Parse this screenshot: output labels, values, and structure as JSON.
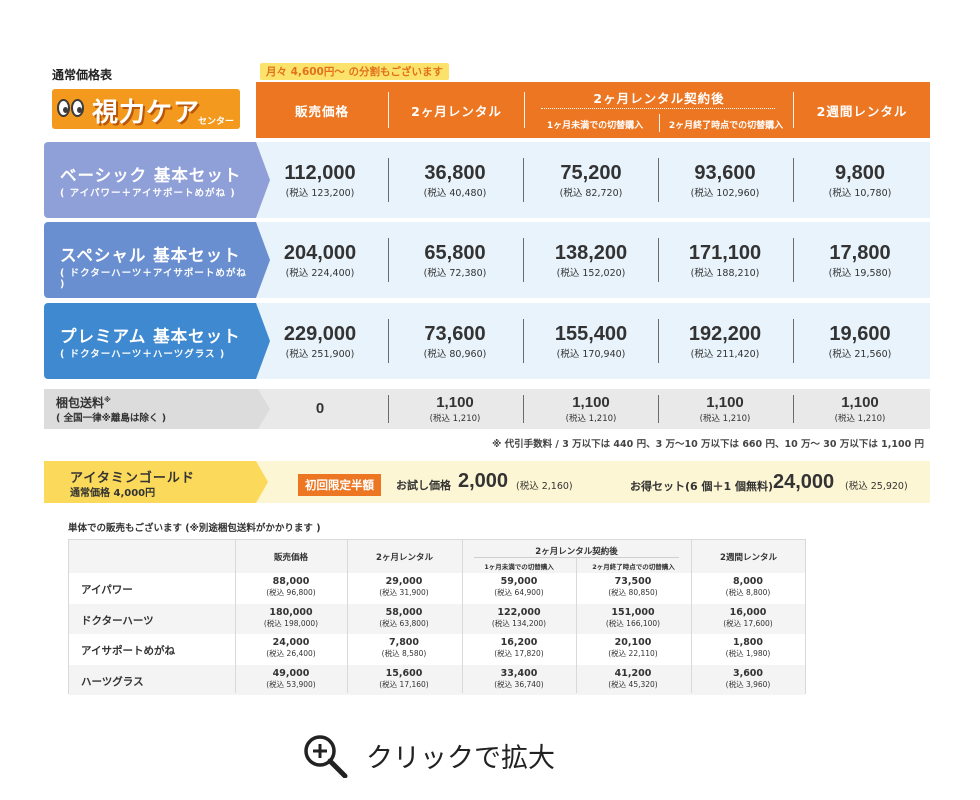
{
  "title_small": "通常価格表",
  "installment_note": "月々 4,600円〜 の分割もございます",
  "logo": {
    "text": "視力ケア",
    "sub": "センター"
  },
  "header": {
    "col1": "販売価格",
    "col2": "2ヶ月レンタル",
    "col3": "2ヶ月レンタル契約後",
    "col3a": "1ヶ月未満での切替購入",
    "col3b": "2ヶ月終了時点での切替購入",
    "col4": "2週間レンタル"
  },
  "sets": [
    {
      "name": "ベーシック 基本セット",
      "sub": "( アイパワー＋アイサポートめがね )",
      "color": "#8f9fd8",
      "values": [
        {
          "price": "112,000",
          "tax": "(税込 123,200)"
        },
        {
          "price": "36,800",
          "tax": "(税込 40,480)"
        },
        {
          "price": "75,200",
          "tax": "(税込 82,720)"
        },
        {
          "price": "93,600",
          "tax": "(税込 102,960)"
        },
        {
          "price": "9,800",
          "tax": "(税込 10,780)"
        }
      ]
    },
    {
      "name": "スペシャル 基本セット",
      "sub": "( ドクターハーツ＋アイサポートめがね )",
      "color": "#6a8fd1",
      "values": [
        {
          "price": "204,000",
          "tax": "(税込 224,400)"
        },
        {
          "price": "65,800",
          "tax": "(税込 72,380)"
        },
        {
          "price": "138,200",
          "tax": "(税込 152,020)"
        },
        {
          "price": "171,100",
          "tax": "(税込 188,210)"
        },
        {
          "price": "17,800",
          "tax": "(税込 19,580)"
        }
      ]
    },
    {
      "name": "プレミアム 基本セット",
      "sub": "( ドクターハーツ＋ハーツグラス )",
      "color": "#3f89d1",
      "values": [
        {
          "price": "229,000",
          "tax": "(税込 251,900)"
        },
        {
          "price": "73,600",
          "tax": "(税込 80,960)"
        },
        {
          "price": "155,400",
          "tax": "(税込 170,940)"
        },
        {
          "price": "192,200",
          "tax": "(税込 211,420)"
        },
        {
          "price": "19,600",
          "tax": "(税込 21,560)"
        }
      ]
    }
  ],
  "shipping": {
    "name": "梱包送料",
    "mark": "※",
    "sub": "( 全国一律※離島は除く )",
    "values": [
      {
        "price": "0",
        "tax": ""
      },
      {
        "price": "1,100",
        "tax": "(税込 1,210)"
      },
      {
        "price": "1,100",
        "tax": "(税込 1,210)"
      },
      {
        "price": "1,100",
        "tax": "(税込 1,210)"
      },
      {
        "price": "1,100",
        "tax": "(税込 1,210)"
      }
    ]
  },
  "cod_note": "※ 代引手数料 / 3 万以下は 440 円、3 万〜10 万以下は 660 円、10 万〜 30 万以下は 1,100 円",
  "gold": {
    "name": "アイタミンゴールド",
    "regular": "通常価格 4,000円",
    "badge": "初回限定半額",
    "trial_label": "お試し価格",
    "trial_price": "2,000",
    "trial_tax": "(税込 2,160)",
    "set_label": "お得セット(6 個＋1 個無料)",
    "set_price": "24,000",
    "set_tax": "(税込 25,920)"
  },
  "single_caption": "単体での販売もございます (※別途梱包送料がかかります )",
  "single_table": {
    "headers": [
      "販売価格",
      "2ヶ月レンタル",
      "2ヶ月レンタル契約後",
      "1ヶ月未満での切替購入",
      "2ヶ月終了時点での切替購入",
      "2週間レンタル"
    ],
    "rows": [
      {
        "name": "アイパワー",
        "values": [
          {
            "b": "88,000",
            "t": "(税込 96,800)"
          },
          {
            "b": "29,000",
            "t": "(税込 31,900)"
          },
          {
            "b": "59,000",
            "t": "(税込 64,900)"
          },
          {
            "b": "73,500",
            "t": "(税込 80,850)"
          },
          {
            "b": "8,000",
            "t": "(税込 8,800)"
          }
        ]
      },
      {
        "name": "ドクターハーツ",
        "values": [
          {
            "b": "180,000",
            "t": "(税込 198,000)"
          },
          {
            "b": "58,000",
            "t": "(税込 63,800)"
          },
          {
            "b": "122,000",
            "t": "(税込 134,200)"
          },
          {
            "b": "151,000",
            "t": "(税込 166,100)"
          },
          {
            "b": "16,000",
            "t": "(税込 17,600)"
          }
        ]
      },
      {
        "name": "アイサポートめがね",
        "values": [
          {
            "b": "24,000",
            "t": "(税込 26,400)"
          },
          {
            "b": "7,800",
            "t": "(税込 8,580)"
          },
          {
            "b": "16,200",
            "t": "(税込 17,820)"
          },
          {
            "b": "20,100",
            "t": "(税込 22,110)"
          },
          {
            "b": "1,800",
            "t": "(税込 1,980)"
          }
        ]
      },
      {
        "name": "ハーツグラス",
        "values": [
          {
            "b": "49,000",
            "t": "(税込 53,900)"
          },
          {
            "b": "15,600",
            "t": "(税込 17,160)"
          },
          {
            "b": "33,400",
            "t": "(税込 36,740)"
          },
          {
            "b": "41,200",
            "t": "(税込 45,320)"
          },
          {
            "b": "3,600",
            "t": "(税込 3,960)"
          }
        ]
      }
    ]
  },
  "zoom_label": "クリックで拡大"
}
